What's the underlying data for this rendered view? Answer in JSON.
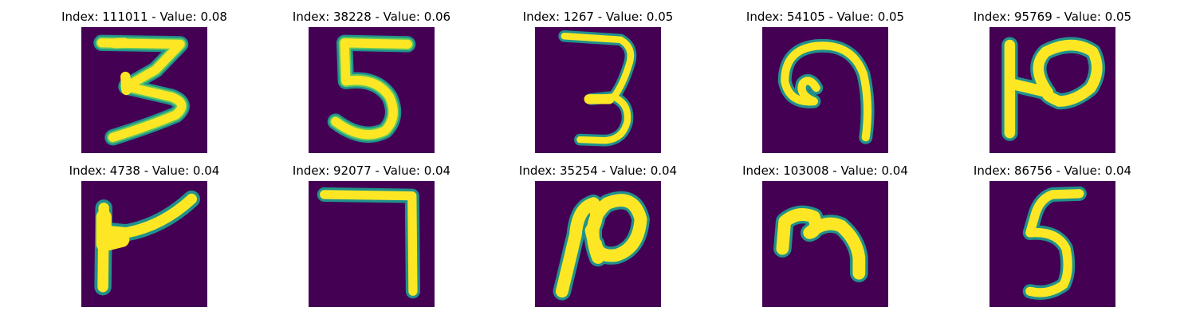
{
  "panels": [
    {
      "title": "Index: 111011 - Value: 0.08",
      "glyph": "3"
    },
    {
      "title": "Index: 38228 - Value: 0.06",
      "glyph": "5"
    },
    {
      "title": "Index: 1267 - Value: 0.05",
      "glyph": "3"
    },
    {
      "title": "Index: 54105 - Value: 0.05",
      "glyph": "9"
    },
    {
      "title": "Index: 95769 - Value: 0.05",
      "glyph": "2"
    },
    {
      "title": "Index: 4738 - Value: 0.04",
      "glyph": "7"
    },
    {
      "title": "Index: 92077 - Value: 0.04",
      "glyph": "7"
    },
    {
      "title": "Index: 35254 - Value: 0.04",
      "glyph": "2"
    },
    {
      "title": "Index: 103008 - Value: 0.04",
      "glyph": "3"
    },
    {
      "title": "Index: 86756 - Value: 0.04",
      "glyph": "5"
    }
  ],
  "colors": {
    "background": "#440154",
    "stroke_core": "#fde725",
    "stroke_edge": "#21918c",
    "stroke_mid": "#5ec962"
  }
}
